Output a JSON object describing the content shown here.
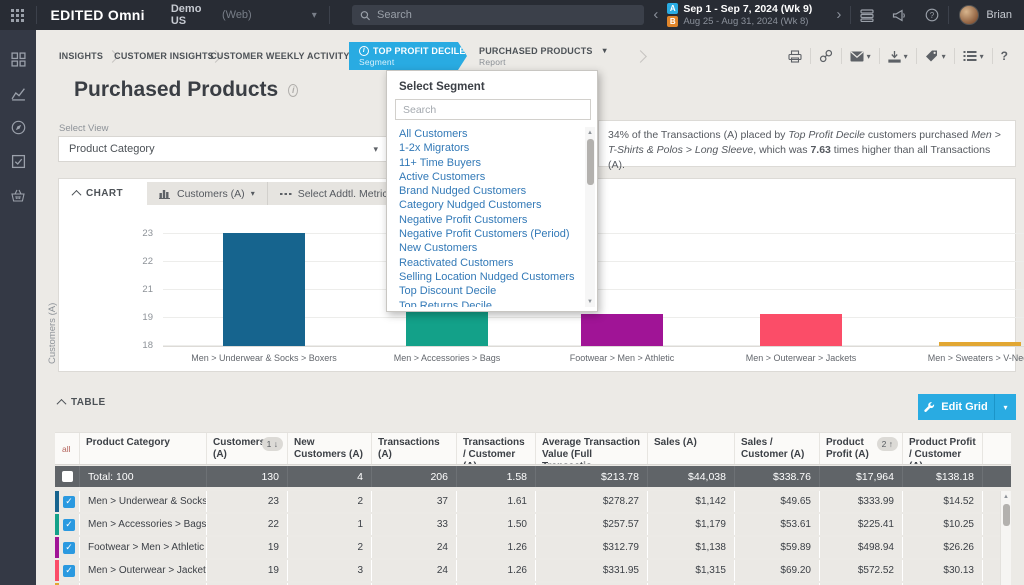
{
  "navbar": {
    "brand": "EDITED Omni",
    "workspace": "Demo US",
    "workspace_type": "(Web)",
    "search_placeholder": "Search",
    "period_a_badge": "A",
    "period_a": "Sep 1 - Sep 7, 2024 (Wk 9)",
    "period_b_badge": "B",
    "period_b": "Aug 25 - Aug 31, 2024 (Wk 8)",
    "user_name": "Brian"
  },
  "tabs": {
    "insights": "INSIGHTS",
    "customer_insights": "CUSTOMER INSIGHTS",
    "customer_weekly_activity": "CUSTOMER WEEKLY ACTIVITY",
    "segment_tab": {
      "label": "TOP PROFIT DECILE",
      "sublabel": "Segment"
    },
    "report_tab": {
      "label": "PURCHASED PRODUCTS",
      "sublabel": "Report"
    }
  },
  "page": {
    "title": "Purchased Products",
    "select_view_label": "Select View",
    "select_view_value": "Product Category"
  },
  "segment_popover": {
    "title": "Select Segment",
    "search_placeholder": "Search",
    "options": [
      "All Customers",
      "1-2x Migrators",
      "11+ Time Buyers",
      "Active Customers",
      "Brand Nudged Customers",
      "Category Nudged Customers",
      "Negative Profit Customers",
      "Negative Profit Customers (Period)",
      "New Customers",
      "Reactivated Customers",
      "Selling Location Nudged Customers",
      "Top Discount Decile",
      "Top Returns Decile"
    ]
  },
  "insight": {
    "parts": [
      {
        "t": "34% of the Transactions (A) placed by ",
        "s": "n"
      },
      {
        "t": "Top Profit Decile",
        "s": "i"
      },
      {
        "t": " customers purchased ",
        "s": "n"
      },
      {
        "t": "Men > T-Shirts & Polos > Long Sleeve",
        "s": "i"
      },
      {
        "t": ", which was ",
        "s": "n"
      },
      {
        "t": "7.63",
        "s": "b"
      },
      {
        "t": " times higher than all Transactions (A).",
        "s": "n"
      }
    ]
  },
  "chart_panel": {
    "section_label": "CHART",
    "metric_dropdown": "Customers (A)",
    "addtl_metric_dropdown": "Select Addtl. Metric"
  },
  "chart_data": {
    "type": "bar",
    "title": "",
    "xlabel": "",
    "ylabel": "Customers (A)",
    "yticks": [
      23,
      22,
      21,
      19,
      18
    ],
    "categories": [
      "Men > Underwear & Socks > Boxers",
      "Men > Accessories > Bags",
      "Footwear > Men > Athletic",
      "Men > Outerwear > Jackets",
      "Men > Sweaters > V-Neck"
    ],
    "values": [
      23,
      22.2,
      19.2,
      19.2,
      18.1
    ],
    "colors": [
      "#16648e",
      "#13a189",
      "#a01496",
      "#fb4d68",
      "#e2a733"
    ],
    "grid": true,
    "legend": false
  },
  "table_panel": {
    "section_label": "TABLE",
    "edit_grid_label": "Edit Grid"
  },
  "table": {
    "select_all_label": "all",
    "columns": [
      {
        "label": "Product Category",
        "sort": ""
      },
      {
        "label": "Customers (A)",
        "sort": "1 ↓"
      },
      {
        "label": "New Customers (A)",
        "sort": ""
      },
      {
        "label": "Transactions (A)",
        "sort": ""
      },
      {
        "label": "Transactions / Customer (A)",
        "sort": ""
      },
      {
        "label": "Average Transaction Value (Full Transactio...",
        "sort": ""
      },
      {
        "label": "Sales (A)",
        "sort": ""
      },
      {
        "label": "Sales / Customer (A)",
        "sort": ""
      },
      {
        "label": "Product Profit (A)",
        "sort": "2 ↑"
      },
      {
        "label": "Product Profit / Customer (A)",
        "sort": ""
      }
    ],
    "total_row": {
      "label": "Total: 100",
      "values": [
        "130",
        "4",
        "206",
        "1.58",
        "$213.78",
        "$44,038",
        "$338.76",
        "$17,964",
        "$138.18"
      ]
    },
    "rows": [
      {
        "category": "Men > Underwear & Socks >...",
        "color": "#16648e",
        "checked": true,
        "values": [
          "23",
          "2",
          "37",
          "1.61",
          "$278.27",
          "$1,142",
          "$49.65",
          "$333.99",
          "$14.52"
        ]
      },
      {
        "category": "Men > Accessories > Bags",
        "color": "#13a189",
        "checked": true,
        "values": [
          "22",
          "1",
          "33",
          "1.50",
          "$257.57",
          "$1,179",
          "$53.61",
          "$225.41",
          "$10.25"
        ]
      },
      {
        "category": "Footwear > Men > Athletic",
        "color": "#a01496",
        "checked": true,
        "values": [
          "19",
          "2",
          "24",
          "1.26",
          "$312.79",
          "$1,138",
          "$59.89",
          "$498.94",
          "$26.26"
        ]
      },
      {
        "category": "Men > Outerwear > Jackets",
        "color": "#fb4d68",
        "checked": true,
        "values": [
          "19",
          "3",
          "24",
          "1.26",
          "$331.95",
          "$1,315",
          "$69.20",
          "$572.52",
          "$30.13"
        ]
      }
    ],
    "partial_row_color": "#e2a733"
  }
}
